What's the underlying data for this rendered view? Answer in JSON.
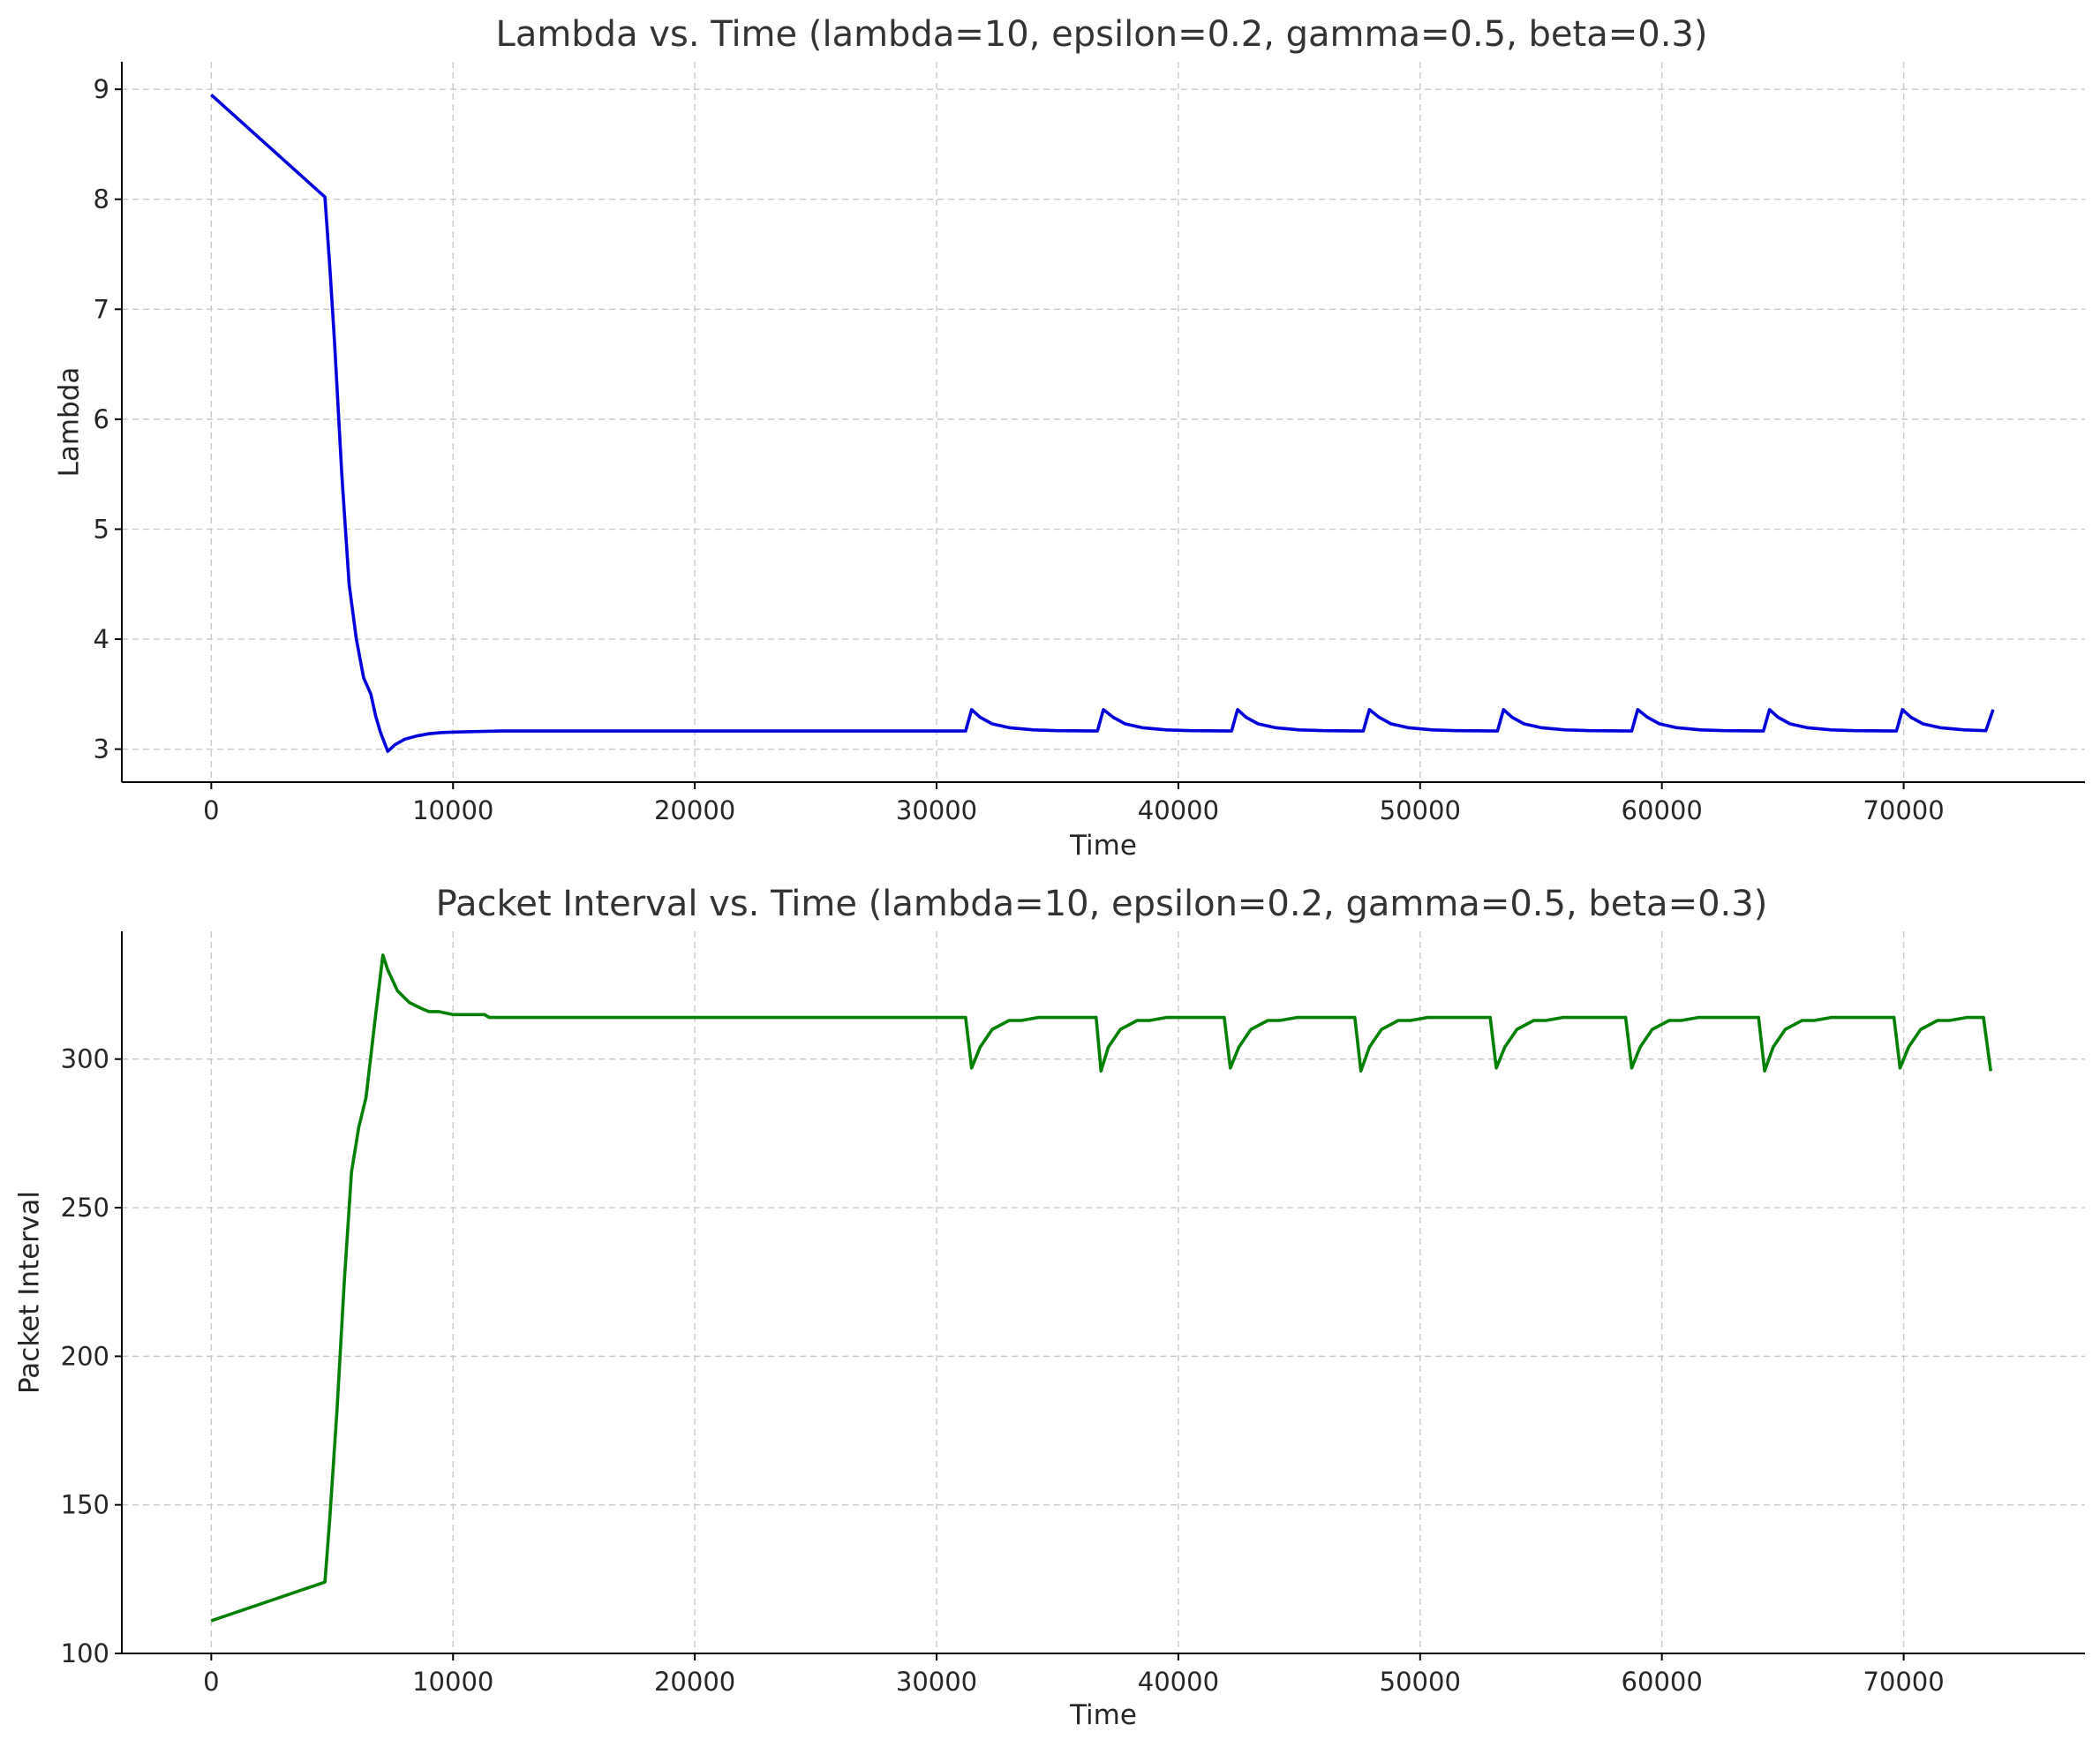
{
  "chart_data": [
    {
      "type": "line",
      "title": "Lambda vs. Time (lambda=10, epsilon=0.2, gamma=0.5, beta=0.3)",
      "xlabel": "Time",
      "ylabel": "Lambda",
      "xlim": [
        -3700,
        77500
      ],
      "ylim": [
        2.7,
        9.25
      ],
      "xticks": [
        0,
        10000,
        20000,
        30000,
        40000,
        50000,
        60000,
        70000
      ],
      "yticks": [
        3,
        4,
        5,
        6,
        7,
        8,
        9
      ],
      "grid": true,
      "color": "#0000dd",
      "series": [
        {
          "x": [
            0,
            4700,
            4900,
            5100,
            5400,
            5700,
            6000,
            6300,
            6600,
            6800,
            7000,
            7300,
            7600,
            8000,
            8500,
            9000,
            9500,
            10000,
            11000,
            12000,
            14000,
            20000,
            25000,
            31200,
            31450,
            31800,
            32300,
            33000,
            34000,
            35000,
            36650,
            36900,
            37300,
            37800,
            38500,
            39500,
            40500,
            42200,
            42450,
            42800,
            43300,
            44000,
            45000,
            46000,
            47650,
            47900,
            48300,
            48800,
            49500,
            50500,
            51500,
            53200,
            53450,
            53800,
            54300,
            55000,
            56000,
            57000,
            58750,
            59000,
            59400,
            59900,
            60600,
            61600,
            62600,
            64200,
            64450,
            64800,
            65300,
            66000,
            67000,
            68000,
            69700,
            69950,
            70300,
            70800,
            71500,
            72500,
            73400,
            73700
          ],
          "y": [
            8.95,
            8.02,
            7.4,
            6.7,
            5.5,
            4.5,
            4.0,
            3.65,
            3.5,
            3.3,
            3.15,
            2.98,
            3.04,
            3.09,
            3.12,
            3.14,
            3.15,
            3.155,
            3.16,
            3.165,
            3.165,
            3.165,
            3.165,
            3.165,
            3.36,
            3.29,
            3.23,
            3.195,
            3.175,
            3.168,
            3.165,
            3.36,
            3.29,
            3.23,
            3.195,
            3.175,
            3.168,
            3.165,
            3.36,
            3.29,
            3.23,
            3.195,
            3.175,
            3.168,
            3.165,
            3.36,
            3.29,
            3.23,
            3.195,
            3.175,
            3.168,
            3.165,
            3.36,
            3.29,
            3.23,
            3.195,
            3.175,
            3.168,
            3.165,
            3.36,
            3.29,
            3.23,
            3.195,
            3.175,
            3.168,
            3.165,
            3.36,
            3.29,
            3.23,
            3.195,
            3.175,
            3.168,
            3.165,
            3.36,
            3.29,
            3.23,
            3.195,
            3.175,
            3.168,
            3.36
          ]
        }
      ]
    },
    {
      "type": "line",
      "title": "Packet Interval vs. Time (lambda=10, epsilon=0.2, gamma=0.5, beta=0.3)",
      "xlabel": "Time",
      "ylabel": "Packet Interval",
      "xlim": [
        -3700,
        77500
      ],
      "ylim": [
        100,
        343
      ],
      "xticks": [
        0,
        10000,
        20000,
        30000,
        40000,
        50000,
        60000,
        70000
      ],
      "yticks": [
        100,
        150,
        200,
        250,
        300
      ],
      "grid": true,
      "color": "#008000",
      "series": [
        {
          "x": [
            0,
            4700,
            4900,
            5200,
            5500,
            5800,
            6100,
            6400,
            6800,
            7100,
            7300,
            7700,
            8200,
            8700,
            9000,
            9400,
            10000,
            11300,
            11500,
            12000,
            20000,
            25000,
            31200,
            31450,
            31800,
            32300,
            33000,
            33500,
            34200,
            34500,
            36600,
            36800,
            37100,
            37600,
            38300,
            38800,
            39500,
            39800,
            41900,
            42150,
            42500,
            43000,
            43700,
            44200,
            44900,
            45200,
            47300,
            47550,
            47900,
            48400,
            49100,
            49600,
            50300,
            50600,
            52900,
            53150,
            53500,
            54000,
            54700,
            55200,
            55900,
            56200,
            58500,
            58750,
            59100,
            59600,
            60300,
            60800,
            61500,
            61800,
            64000,
            64250,
            64600,
            65100,
            65800,
            66300,
            67000,
            67300,
            69600,
            69850,
            70200,
            70700,
            71400,
            71900,
            72600,
            72900,
            73300,
            73600
          ],
          "y": [
            111,
            124,
            145,
            182,
            225,
            262,
            277,
            287,
            315,
            335,
            330,
            323,
            319,
            317,
            316,
            316,
            315,
            315,
            314,
            314,
            314,
            314,
            314,
            297,
            304,
            310,
            313,
            313,
            314,
            314,
            314,
            296,
            304,
            310,
            313,
            313,
            314,
            314,
            314,
            297,
            304,
            310,
            313,
            313,
            314,
            314,
            314,
            296,
            304,
            310,
            313,
            313,
            314,
            314,
            314,
            297,
            304,
            310,
            313,
            313,
            314,
            314,
            314,
            297,
            304,
            310,
            313,
            313,
            314,
            314,
            314,
            296,
            304,
            310,
            313,
            313,
            314,
            314,
            314,
            297,
            304,
            310,
            313,
            313,
            314,
            314,
            314,
            296
          ]
        }
      ]
    }
  ]
}
